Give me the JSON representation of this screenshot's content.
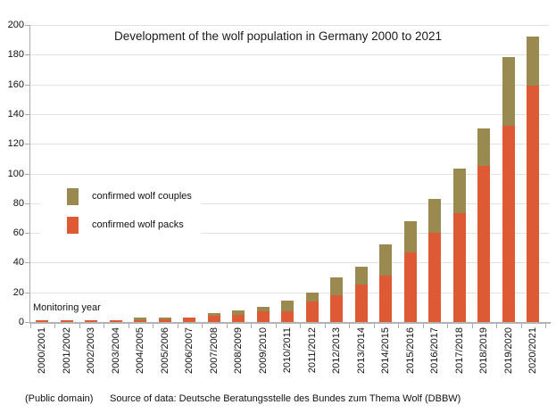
{
  "title": "Development of the wolf population in Germany 2000 to 2021",
  "axis_note": "Monitoring year",
  "legend": {
    "couples_label": "confirmed wolf couples",
    "packs_label": "confirmed wolf packs"
  },
  "colors": {
    "packs": "#de5a35",
    "couples": "#9a8a50",
    "axis": "#ababab",
    "gridline": "#e2e2e2"
  },
  "footer": {
    "license": "(Public domain)",
    "source": "Source of data: Deutsche Beratungsstelle des Bundes zum Thema Wolf (DBBW)"
  },
  "chart_data": {
    "type": "bar",
    "stacked": true,
    "title": "Development of the wolf population in Germany 2000 to 2021",
    "xlabel": "Monitoring year",
    "ylabel": "",
    "ylim": [
      0,
      200
    ],
    "y_ticks": [
      0,
      20,
      40,
      60,
      80,
      100,
      120,
      140,
      160,
      180,
      200
    ],
    "grid": true,
    "legend_position": "upper-left-inside",
    "categories": [
      "2000/2001",
      "2001/2002",
      "2002/2003",
      "2003/2004",
      "2004/2005",
      "2005/2006",
      "2006/2007",
      "2007/2008",
      "2008/2009",
      "2009/2010",
      "2010/2011",
      "2011/2012",
      "2012/2013",
      "2013/2014",
      "2014/2015",
      "2015/2016",
      "2016/2017",
      "2017/2018",
      "2018/2019",
      "2019/2020",
      "2020/2021"
    ],
    "series": [
      {
        "name": "confirmed wolf packs",
        "color": "#de5a35",
        "values": [
          1,
          1,
          1,
          1,
          1,
          2,
          3,
          4,
          5,
          7,
          7,
          14,
          18,
          25,
          31,
          47,
          60,
          73,
          105,
          132,
          159
        ]
      },
      {
        "name": "confirmed wolf couples",
        "color": "#9a8a50",
        "values": [
          0,
          0,
          0,
          0,
          2,
          1,
          0,
          2,
          3,
          3,
          7,
          6,
          12,
          12,
          21,
          21,
          23,
          30,
          25,
          46,
          33
        ]
      }
    ]
  }
}
